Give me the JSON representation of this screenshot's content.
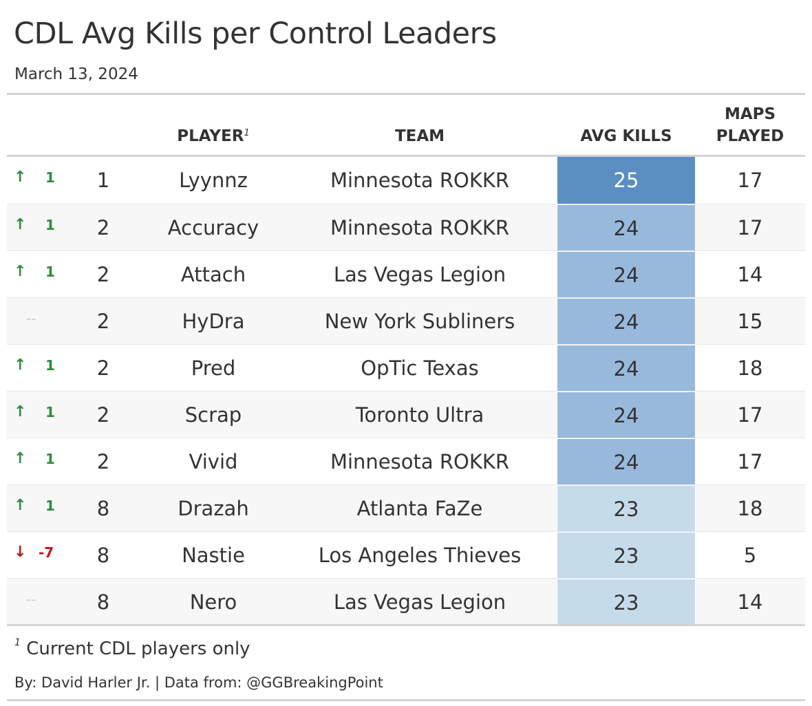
{
  "title": "CDL Avg Kills per Control Leaders",
  "subtitle": "March 13, 2024",
  "columns": {
    "player": "PLAYER",
    "player_footnote_mark": "1",
    "team": "TEAM",
    "avg_kills": "AVG KILLS",
    "maps_played_line1": "MAPS",
    "maps_played_line2": "PLAYED"
  },
  "footnote": {
    "mark": "1",
    "text": "Current CDL players only"
  },
  "credit": "By: David Harler Jr. | Data from: @GGBreakingPoint",
  "colors": {
    "up": "#2e8b3d",
    "down": "#c0161c",
    "neutral": "#cccccc",
    "kills_25": "#5b8ec3",
    "kills_24": "#98b9dc",
    "kills_23": "#c6dbea"
  },
  "chart_data": {
    "type": "table",
    "title": "CDL Avg Kills per Control Leaders",
    "subtitle": "March 13, 2024",
    "columns": [
      "",
      "",
      "PLAYER",
      "TEAM",
      "AVG KILLS",
      "MAPS PLAYED"
    ],
    "rows": [
      {
        "direction": "up",
        "change": "1",
        "rank": "1",
        "player": "Lyynnz",
        "team": "Minnesota ROKKR",
        "avg_kills": 25,
        "maps_played": 17
      },
      {
        "direction": "up",
        "change": "1",
        "rank": "2",
        "player": "Accuracy",
        "team": "Minnesota ROKKR",
        "avg_kills": 24,
        "maps_played": 17
      },
      {
        "direction": "up",
        "change": "1",
        "rank": "2",
        "player": "Attach",
        "team": "Las Vegas Legion",
        "avg_kills": 24,
        "maps_played": 14
      },
      {
        "direction": "none",
        "change": "--",
        "rank": "2",
        "player": "HyDra",
        "team": "New York Subliners",
        "avg_kills": 24,
        "maps_played": 15
      },
      {
        "direction": "up",
        "change": "1",
        "rank": "2",
        "player": "Pred",
        "team": "OpTic Texas",
        "avg_kills": 24,
        "maps_played": 18
      },
      {
        "direction": "up",
        "change": "1",
        "rank": "2",
        "player": "Scrap",
        "team": "Toronto Ultra",
        "avg_kills": 24,
        "maps_played": 17
      },
      {
        "direction": "up",
        "change": "1",
        "rank": "2",
        "player": "Vivid",
        "team": "Minnesota ROKKR",
        "avg_kills": 24,
        "maps_played": 17
      },
      {
        "direction": "up",
        "change": "1",
        "rank": "8",
        "player": "Drazah",
        "team": "Atlanta FaZe",
        "avg_kills": 23,
        "maps_played": 18
      },
      {
        "direction": "down",
        "change": "-7",
        "rank": "8",
        "player": "Nastie",
        "team": "Los Angeles Thieves",
        "avg_kills": 23,
        "maps_played": 5
      },
      {
        "direction": "none",
        "change": "--",
        "rank": "8",
        "player": "Nero",
        "team": "Las Vegas Legion",
        "avg_kills": 23,
        "maps_played": 14
      }
    ]
  }
}
